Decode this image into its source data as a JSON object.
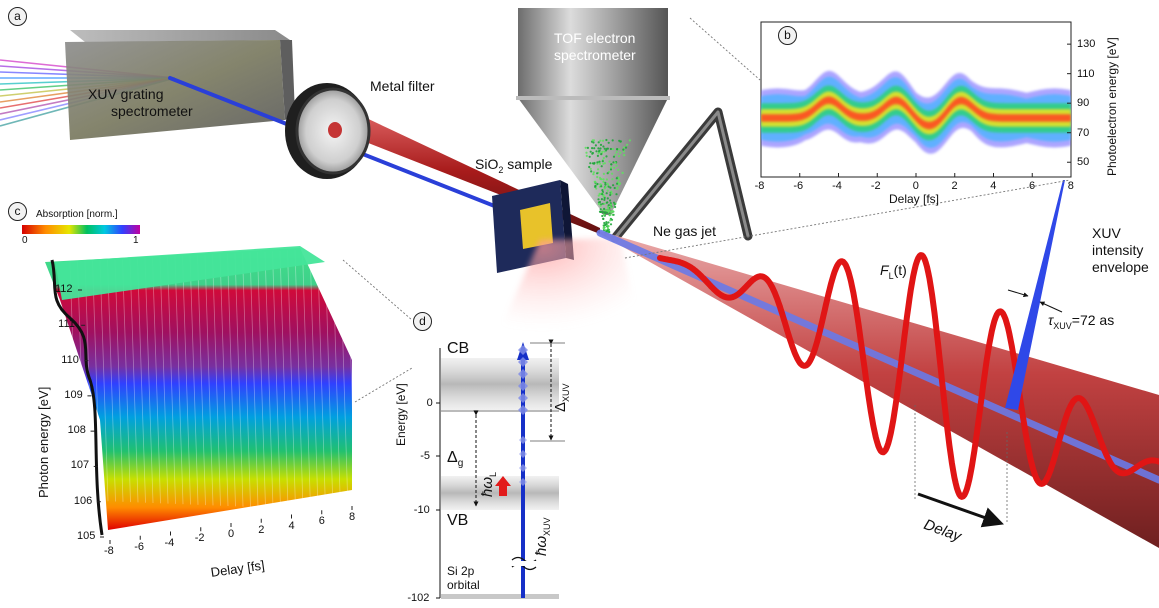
{
  "panels": {
    "a": "a",
    "b": "b",
    "c": "c",
    "d": "d"
  },
  "labels": {
    "grating_line1": "XUV  grating",
    "grating_line2": "spectrometer",
    "metal_filter": "Metal filter",
    "tof_line1": "TOF electron",
    "tof_line2": "spectrometer",
    "sio2_pre": "SiO",
    "sio2_sub": "2",
    "sio2_post": " sample",
    "ne_jet": "Ne gas jet",
    "xuv_env_line1": "XUV",
    "xuv_env_line2": "intensity",
    "xuv_env_line3": "envelope",
    "fl_main": "F",
    "fl_sub": "L",
    "fl_arg": "(t)",
    "tau_main": "τ",
    "tau_sub": "XUV",
    "tau_val": "=72 as",
    "delay_arrow": "Delay"
  },
  "panel_b": {
    "xlabel": "Delay [fs]",
    "ylabel": "Photoelectron energy [eV]",
    "xticks": [
      "-8",
      "-6",
      "-4",
      "-2",
      "0",
      "2",
      "4",
      "6",
      "8"
    ],
    "yticks": [
      "50",
      "70",
      "90",
      "110",
      "130"
    ]
  },
  "panel_c": {
    "cbar_title": "Absorption [norm.]",
    "cbar_min": "0",
    "cbar_max": "1",
    "xlabel": "Delay [fs]",
    "ylabel": "Photon energy [eV]",
    "xticks": [
      "-8",
      "-6",
      "-4",
      "-2",
      "0",
      "2",
      "4",
      "6",
      "8"
    ],
    "yticks": [
      "105",
      "106",
      "107",
      "108",
      "109",
      "110",
      "111",
      "112"
    ]
  },
  "panel_d": {
    "ylabel": "Energy [eV]",
    "yticks": [
      "0",
      "-5",
      "-10",
      "-102"
    ],
    "cb": "CB",
    "vb": "VB",
    "orbital_line1": "Si 2p",
    "orbital_line2": "orbital",
    "delta_g": "Δ",
    "delta_g_sub": "g",
    "delta_xuv": "Δ",
    "delta_xuv_sub": "XUV",
    "hw_l": "ħω",
    "hw_l_sub": "L",
    "hw_xuv": "ħω",
    "hw_xuv_sub": "XUV"
  },
  "chart_data": [
    {
      "type": "heatmap",
      "panel": "b",
      "x_range": [
        -8,
        8
      ],
      "y_range": [
        40,
        145
      ],
      "xlabel": "Delay [fs]",
      "ylabel": "Photoelectron energy [eV]",
      "peaks_fs": [
        -4.5,
        -1,
        2.3
      ],
      "centre_energy_eV": 80
    },
    {
      "type": "heatmap",
      "panel": "c",
      "x_range": [
        -8,
        8
      ],
      "y_range": [
        105,
        112
      ],
      "xlabel": "Delay [fs]",
      "ylabel": "Photon energy [eV]",
      "colorbar": {
        "min": 0,
        "max": 1,
        "title": "Absorption [norm.]"
      }
    }
  ],
  "colors": {
    "laser": "#c21010",
    "xuv": "#2a3fd8",
    "beam": "#b41a1a"
  }
}
